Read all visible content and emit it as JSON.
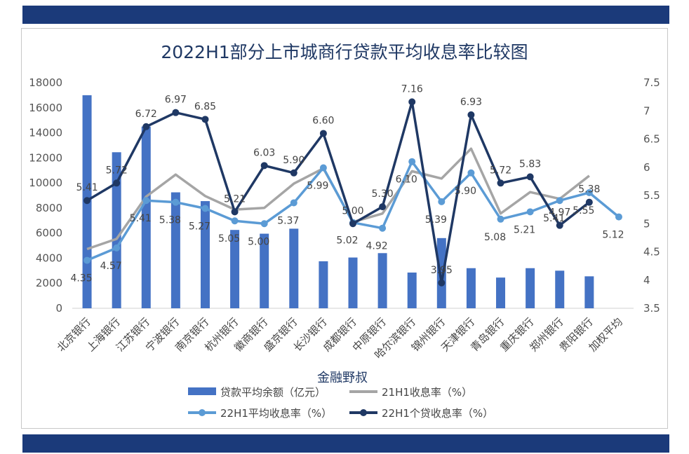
{
  "chart_data": {
    "type": "bar+line",
    "title": "2022H1部分上市城商行贷款平均收息率比较图",
    "xlabel": "金融野叔",
    "categories": [
      "北京银行",
      "上海银行",
      "江苏银行",
      "宁波银行",
      "南京银行",
      "杭州银行",
      "徽商银行",
      "盛京银行",
      "长沙银行",
      "成都银行",
      "中原银行",
      "哈尔滨银行",
      "锦州银行",
      "天津银行",
      "青岛银行",
      "重庆银行",
      "郑州银行",
      "贵阳银行",
      "加权平均"
    ],
    "y_left": {
      "min": 0,
      "max": 18000,
      "step": 2000
    },
    "y_right": {
      "min": 3.5,
      "max": 7.5,
      "step": 0.5
    },
    "grid": false,
    "legend_position": "bottom",
    "series": [
      {
        "name": "贷款平均余额（亿元）",
        "type": "bar",
        "axis": "left",
        "color": "#4472c4",
        "values": [
          17000,
          12450,
          14500,
          9250,
          8550,
          6250,
          5950,
          6350,
          3750,
          4050,
          4400,
          2850,
          5600,
          3200,
          2450,
          3200,
          3000,
          2550,
          null
        ]
      },
      {
        "name": "21H1收息率（%）",
        "type": "line",
        "axis": "right",
        "color": "#a5a5a5",
        "marker": false,
        "values": [
          4.55,
          4.73,
          5.48,
          5.87,
          5.49,
          5.25,
          5.28,
          5.71,
          5.98,
          5.03,
          5.18,
          5.93,
          5.8,
          6.33,
          5.18,
          5.56,
          5.44,
          5.85,
          null
        ]
      },
      {
        "name": "22H1平均收息率（%）",
        "type": "line",
        "axis": "right",
        "color": "#5b9bd5",
        "marker": true,
        "values": [
          4.35,
          4.57,
          5.41,
          5.38,
          5.27,
          5.05,
          5.0,
          5.37,
          5.99,
          5.02,
          4.92,
          6.1,
          5.39,
          5.9,
          5.08,
          5.21,
          5.41,
          5.55,
          5.12
        ],
        "labels": [
          "4.35",
          "4.57",
          "5.41",
          "5.38",
          "5.27",
          "5.05",
          "5.00",
          "5.37",
          "5.99",
          "5.02",
          "4.92",
          "6.10",
          "5.39",
          "5.90",
          "5.08",
          "5.21",
          "5.41",
          "5.55",
          "5.12"
        ]
      },
      {
        "name": "22H1个贷收息率（%）",
        "type": "line",
        "axis": "right",
        "color": "#1f3864",
        "marker": true,
        "values": [
          5.41,
          5.72,
          6.72,
          6.97,
          6.85,
          5.21,
          6.03,
          5.9,
          6.6,
          5.0,
          5.3,
          7.16,
          3.95,
          6.93,
          5.72,
          5.83,
          4.97,
          5.38,
          null
        ],
        "labels": [
          "5.41",
          "5.72",
          "6.72",
          "6.97",
          "6.85",
          "5.21",
          "6.03",
          "5.90",
          "6.60",
          "5.00",
          "5.30",
          "7.16",
          "3.95",
          "6.93",
          "5.72",
          "5.83",
          "4.97",
          "5.38",
          ""
        ]
      }
    ]
  }
}
